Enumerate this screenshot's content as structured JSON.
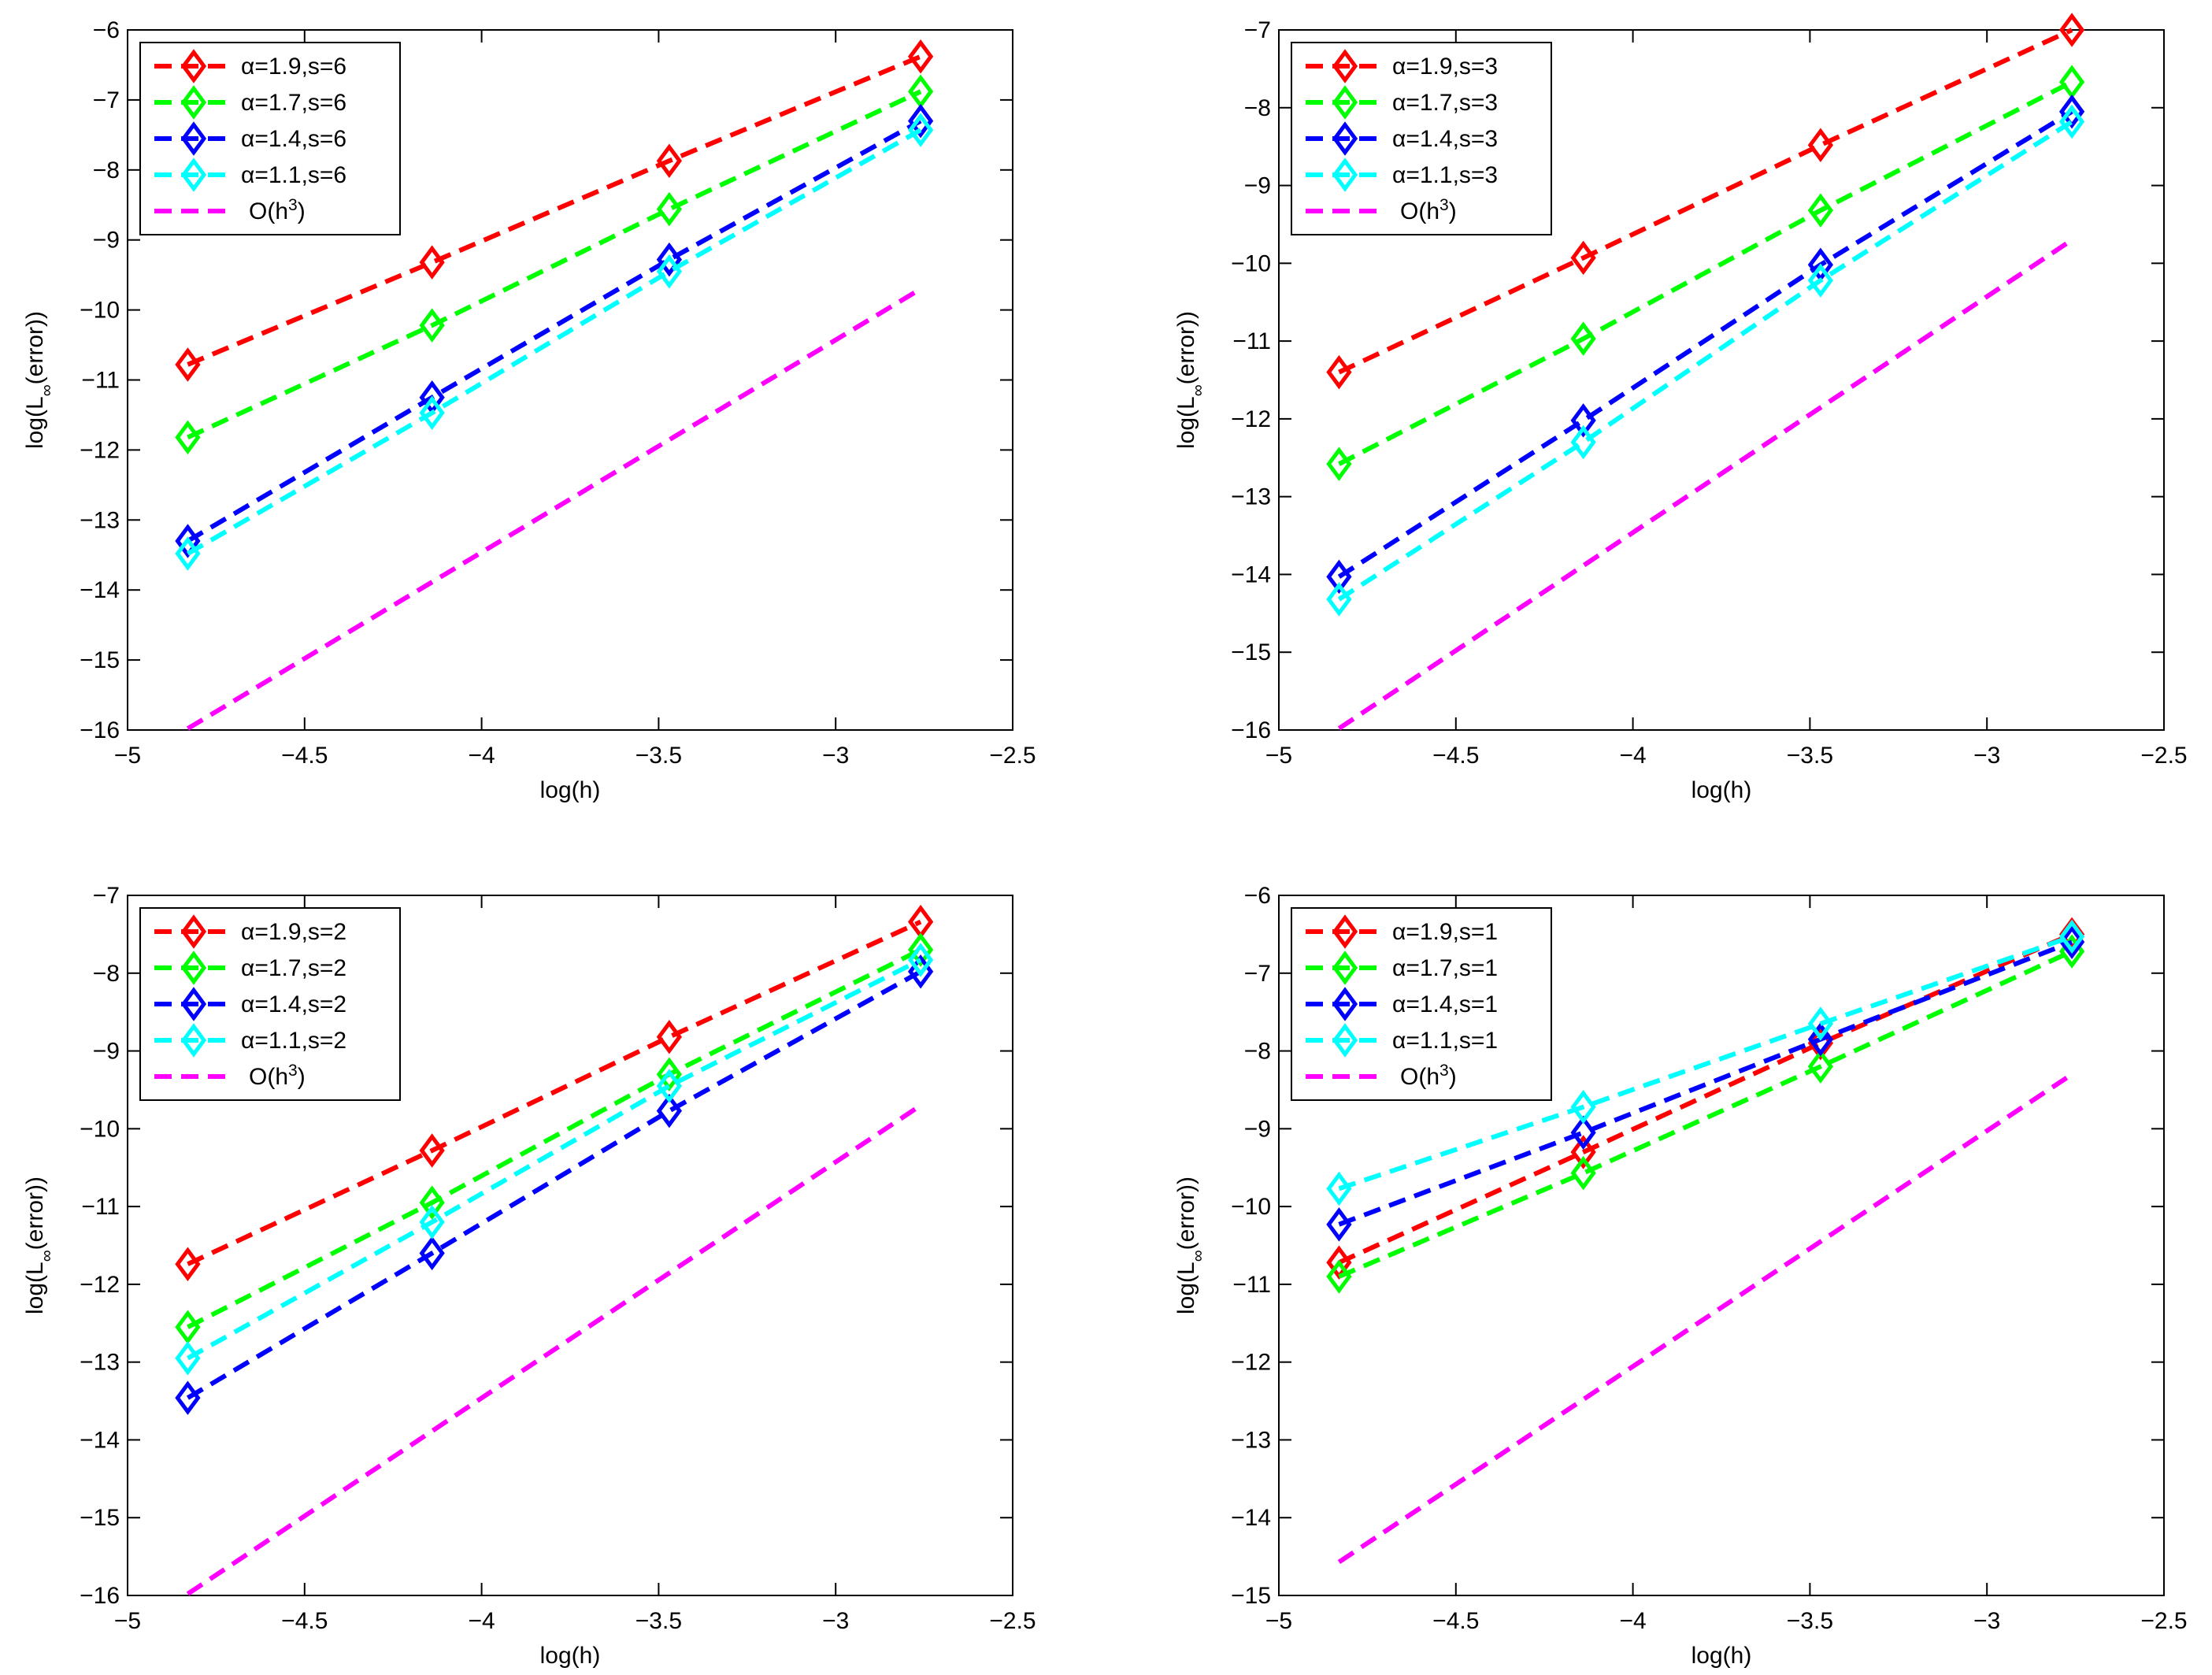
{
  "chart_data": [
    {
      "type": "line",
      "x": [
        -4.83,
        -4.14,
        -3.47,
        -2.76
      ],
      "xlim": [
        -5,
        -2.5
      ],
      "ylim": [
        -16,
        -6
      ],
      "xticks": [
        "−5",
        "−4.5",
        "−4",
        "−3.5",
        "−3",
        "−2.5"
      ],
      "yticks": [
        "−6",
        "−7",
        "−8",
        "−9",
        "−10",
        "−11",
        "−12",
        "−13",
        "−14",
        "−15",
        "−16"
      ],
      "xlabel": "log(h)",
      "ylabel_main": "log(L",
      "ylabel_sub": "∞",
      "ylabel_tail": "(error))",
      "legend_position": "top-left",
      "series": [
        {
          "name": "α=1.9,s=6",
          "color": "#ff0000",
          "values": [
            -10.78,
            -9.32,
            -7.87,
            -6.38
          ]
        },
        {
          "name": "α=1.7,s=6",
          "color": "#00ff00",
          "values": [
            -11.82,
            -10.22,
            -8.56,
            -6.88
          ]
        },
        {
          "name": "α=1.4,s=6",
          "color": "#0000ff",
          "values": [
            -13.3,
            -11.25,
            -9.28,
            -7.3
          ]
        },
        {
          "name": "α=1.1,s=6",
          "color": "#00ffff",
          "values": [
            -13.48,
            -11.47,
            -9.45,
            -7.43
          ]
        }
      ],
      "reference": {
        "label_prefix": "O(h",
        "label_sup": "3",
        "label_suffix": ")",
        "color": "#ff00ff",
        "x": [
          -4.83,
          -2.76
        ],
        "values": [
          -15.98,
          -9.7
        ]
      }
    },
    {
      "type": "line",
      "x": [
        -4.83,
        -4.14,
        -3.47,
        -2.76
      ],
      "xlim": [
        -5,
        -2.5
      ],
      "ylim": [
        -16,
        -7
      ],
      "xticks": [
        "−5",
        "−4.5",
        "−4",
        "−3.5",
        "−3",
        "−2.5"
      ],
      "yticks": [
        "−7",
        "−8",
        "−9",
        "−10",
        "−11",
        "−12",
        "−13",
        "−14",
        "−15",
        "−16"
      ],
      "xlabel": "log(h)",
      "ylabel_main": "log(L",
      "ylabel_sub": "∞",
      "ylabel_tail": "(error))",
      "legend_position": "top-left",
      "series": [
        {
          "name": "α=1.9,s=3",
          "color": "#ff0000",
          "values": [
            -11.4,
            -9.93,
            -8.48,
            -7.0
          ]
        },
        {
          "name": "α=1.7,s=3",
          "color": "#00ff00",
          "values": [
            -12.58,
            -10.97,
            -9.32,
            -7.67
          ]
        },
        {
          "name": "α=1.4,s=3",
          "color": "#0000ff",
          "values": [
            -14.03,
            -12.02,
            -10.02,
            -8.05
          ]
        },
        {
          "name": "α=1.1,s=3",
          "color": "#00ffff",
          "values": [
            -14.32,
            -12.3,
            -10.22,
            -8.18
          ]
        }
      ],
      "reference": {
        "label_prefix": "O(h",
        "label_sup": "3",
        "label_suffix": ")",
        "color": "#ff00ff",
        "x": [
          -4.83,
          -2.76
        ],
        "values": [
          -15.98,
          -9.7
        ]
      }
    },
    {
      "type": "line",
      "x": [
        -4.83,
        -4.14,
        -3.47,
        -2.76
      ],
      "xlim": [
        -5,
        -2.5
      ],
      "ylim": [
        -16,
        -7
      ],
      "xticks": [
        "−5",
        "−4.5",
        "−4",
        "−3.5",
        "−3",
        "−2.5"
      ],
      "yticks": [
        "−7",
        "−8",
        "−9",
        "−10",
        "−11",
        "−12",
        "−13",
        "−14",
        "−15",
        "−16"
      ],
      "xlabel": "log(h)",
      "ylabel_main": "log(L",
      "ylabel_sub": "∞",
      "ylabel_tail": "(error))",
      "legend_position": "top-left",
      "series": [
        {
          "name": "α=1.9,s=2",
          "color": "#ff0000",
          "values": [
            -11.74,
            -10.28,
            -8.82,
            -7.34
          ]
        },
        {
          "name": "α=1.7,s=2",
          "color": "#00ff00",
          "values": [
            -12.55,
            -10.95,
            -9.3,
            -7.7
          ]
        },
        {
          "name": "α=1.4,s=2",
          "color": "#0000ff",
          "values": [
            -13.46,
            -11.6,
            -9.77,
            -7.98
          ]
        },
        {
          "name": "α=1.1,s=2",
          "color": "#00ffff",
          "values": [
            -12.95,
            -11.2,
            -9.45,
            -7.83
          ]
        }
      ],
      "reference": {
        "label_prefix": "O(h",
        "label_sup": "3",
        "label_suffix": ")",
        "color": "#ff00ff",
        "x": [
          -4.83,
          -2.76
        ],
        "values": [
          -15.98,
          -9.7
        ]
      }
    },
    {
      "type": "line",
      "x": [
        -4.83,
        -4.14,
        -3.47,
        -2.76
      ],
      "xlim": [
        -5,
        -2.5
      ],
      "ylim": [
        -15,
        -6
      ],
      "xticks": [
        "−5",
        "−4.5",
        "−4",
        "−3.5",
        "−3",
        "−2.5"
      ],
      "yticks": [
        "−6",
        "−7",
        "−8",
        "−9",
        "−10",
        "−11",
        "−12",
        "−13",
        "−14",
        "−15"
      ],
      "xlabel": "log(h)",
      "ylabel_main": "log(L",
      "ylabel_sub": "∞",
      "ylabel_tail": "(error))",
      "legend_position": "top-left",
      "series": [
        {
          "name": "α=1.9,s=1",
          "color": "#ff0000",
          "values": [
            -10.72,
            -9.3,
            -7.9,
            -6.5
          ]
        },
        {
          "name": "α=1.7,s=1",
          "color": "#00ff00",
          "values": [
            -10.9,
            -9.57,
            -8.2,
            -6.72
          ]
        },
        {
          "name": "α=1.4,s=1",
          "color": "#0000ff",
          "values": [
            -10.23,
            -9.05,
            -7.85,
            -6.6
          ]
        },
        {
          "name": "α=1.1,s=1",
          "color": "#00ffff",
          "values": [
            -9.77,
            -8.72,
            -7.65,
            -6.53
          ]
        }
      ],
      "reference": {
        "label_prefix": "O(h",
        "label_sup": "3",
        "label_suffix": ")",
        "color": "#ff00ff",
        "x": [
          -4.83,
          -2.76
        ],
        "values": [
          -14.57,
          -8.3
        ]
      }
    }
  ]
}
